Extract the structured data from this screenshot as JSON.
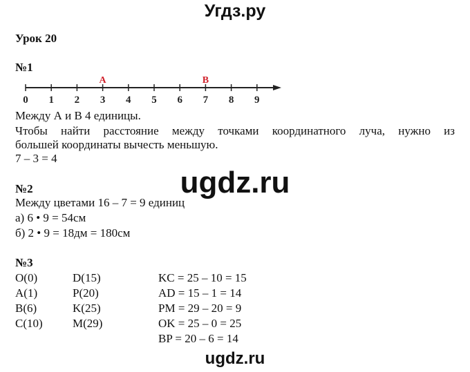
{
  "header": "Угдз.ру",
  "lesson": "Урок 20",
  "task1": {
    "title": "№1",
    "point_labels": [
      {
        "name": "A",
        "value": 3
      },
      {
        "name": "B",
        "value": 7
      }
    ],
    "ticks": [
      "0",
      "1",
      "2",
      "3",
      "4",
      "5",
      "6",
      "7",
      "8",
      "9"
    ],
    "accent": "#d0202a",
    "lines": [
      "Между А и В 4 единицы.",
      "Чтобы найти расстояние между точками координатного луча, нужно из",
      "большей координаты вычесть меньшую.",
      "7 – 3 = 4"
    ]
  },
  "watermark": "ugdz.ru",
  "task2": {
    "title": "№2",
    "lines": [
      "Между цветами 16 – 7 = 9 единиц",
      "а) 6 • 9 = 54см",
      "б) 2 • 9 = 18дм = 180см"
    ]
  },
  "task3": {
    "title": "№3",
    "col1": [
      "O(0)",
      "A(1)",
      "B(6)",
      "C(10)"
    ],
    "col2": [
      "D(15)",
      "P(20)",
      "K(25)",
      "M(29)"
    ],
    "col3": [
      "KC = 25 – 10 = 15",
      "AD = 15 – 1 = 14",
      "PM = 29 – 20 = 9",
      "OK = 25 – 0 = 25",
      "BP = 20 – 6 = 14"
    ]
  },
  "footer": "ugdz.ru"
}
